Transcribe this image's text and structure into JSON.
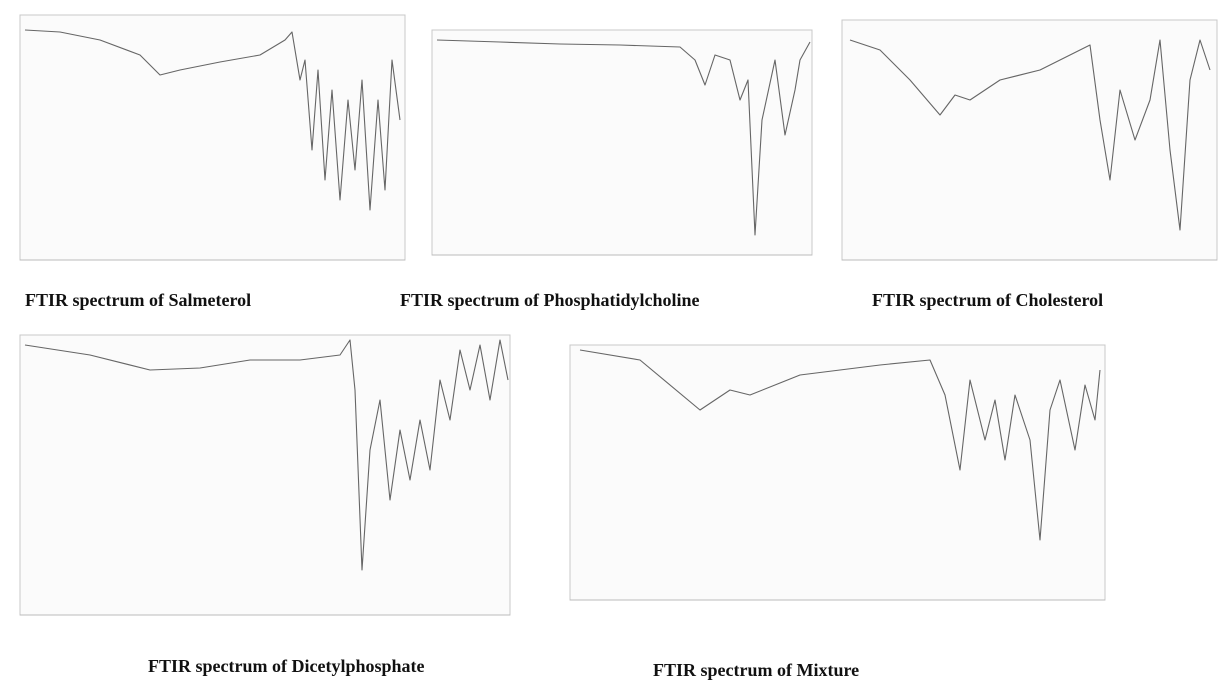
{
  "captions": [
    "FTIR spectrum of Salmeterol",
    "FTIR spectrum of Phosphatidylcholine",
    "FTIR spectrum of Cholesterol",
    "FTIR spectrum of Dicetylphosphate",
    "FTIR spectrum of Mixture"
  ]
}
